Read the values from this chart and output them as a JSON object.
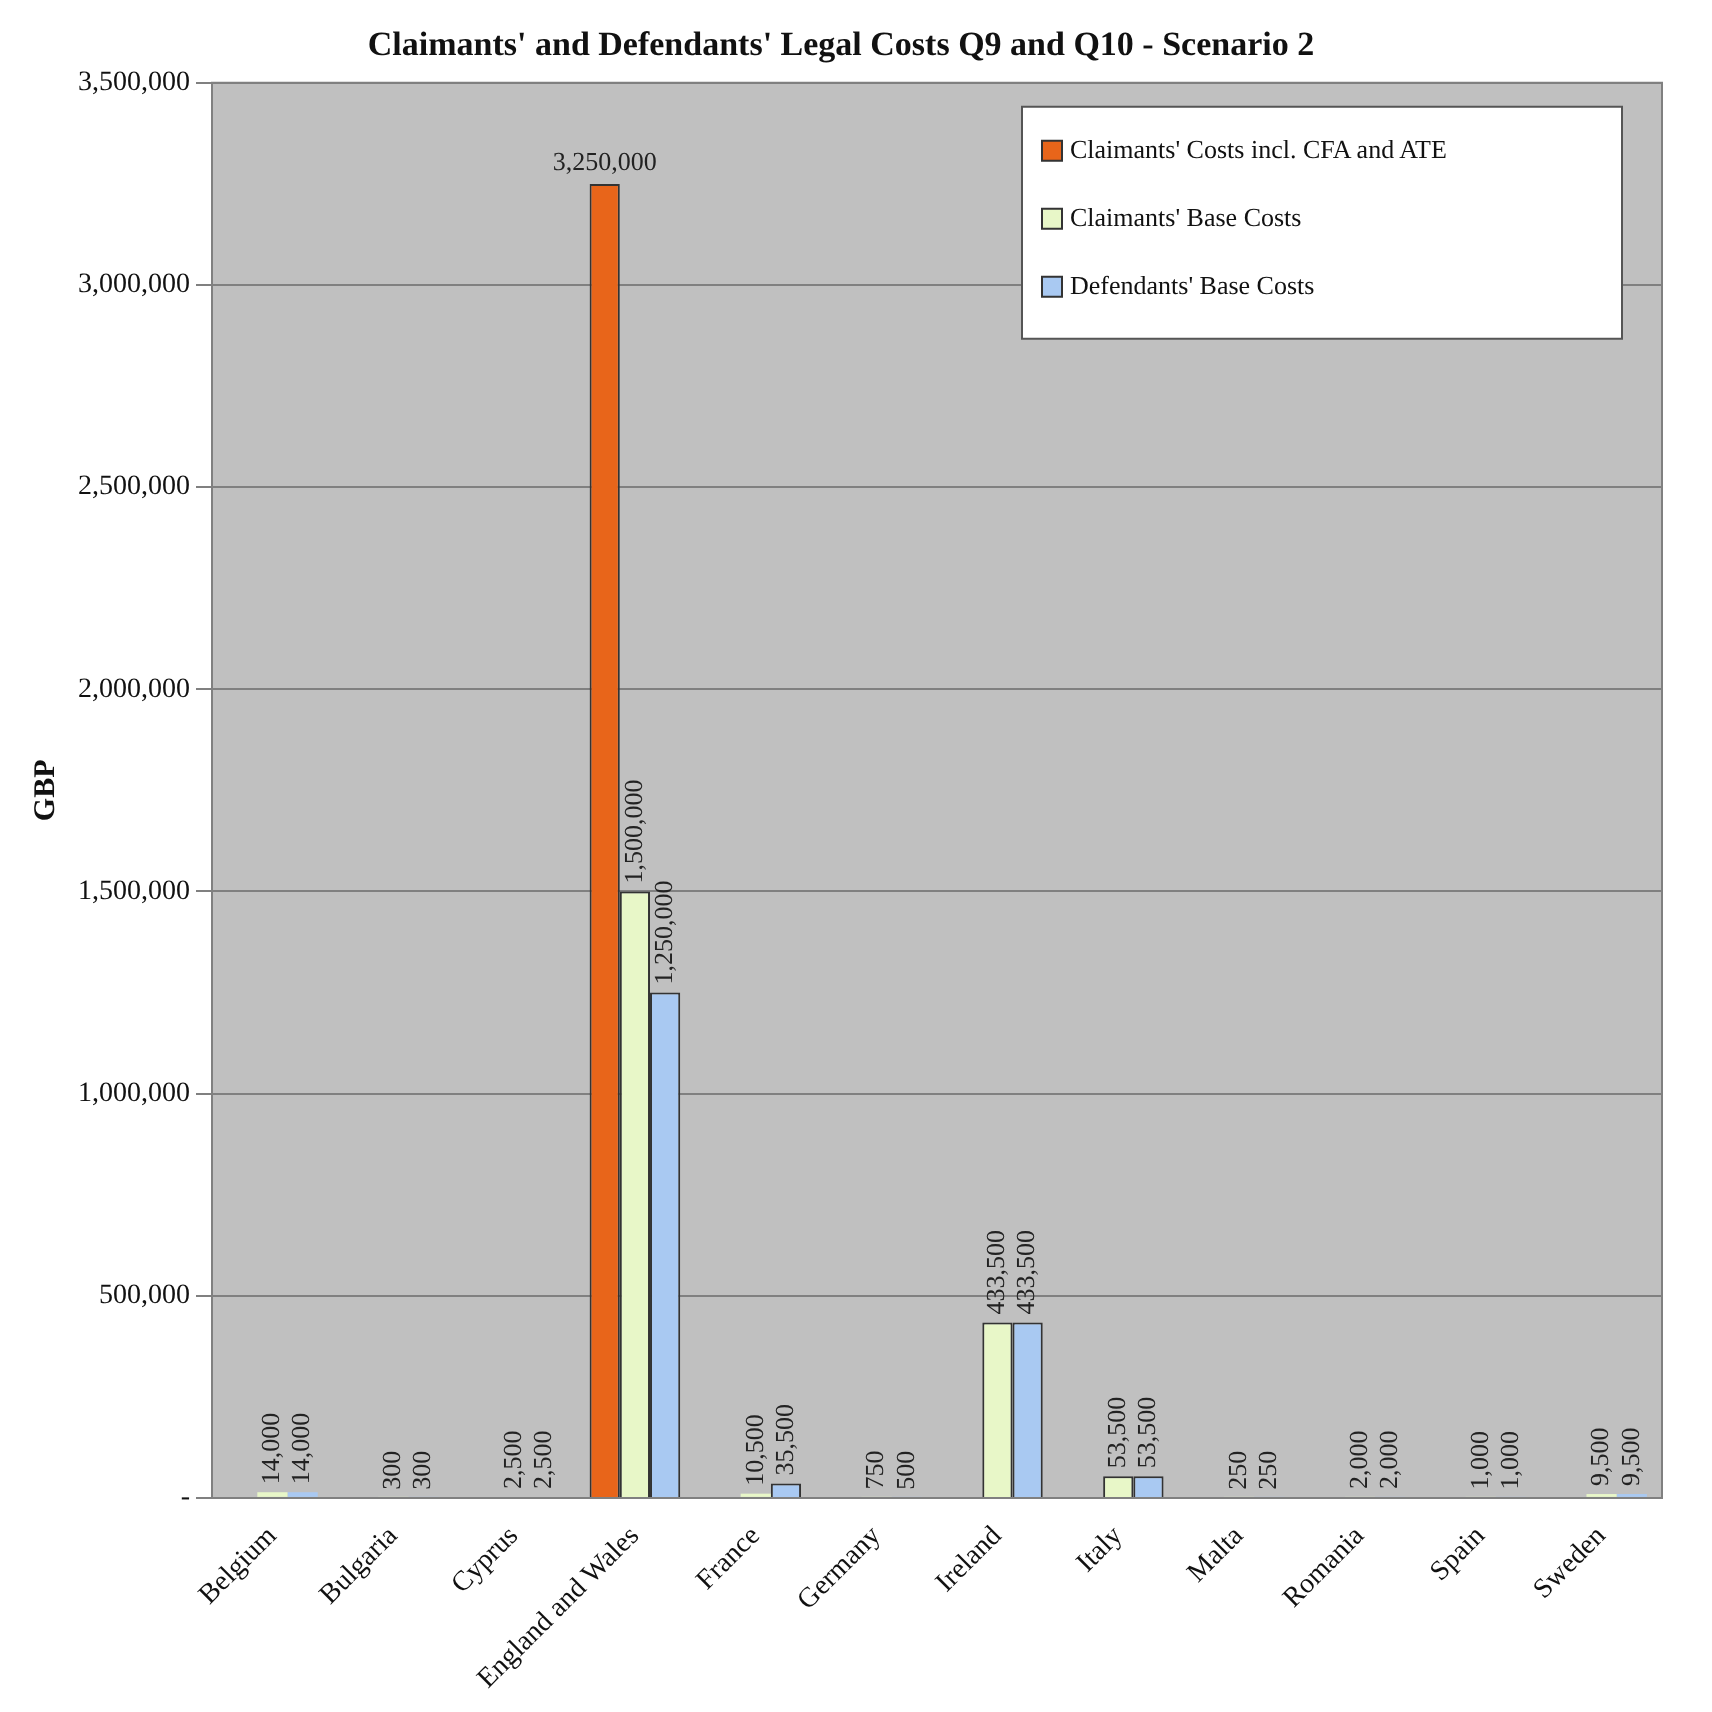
{
  "chart_data": {
    "type": "bar",
    "title": "Claimants' and Defendants' Legal Costs Q9 and Q10 - Scenario 2",
    "ylabel": "GBP",
    "categories": [
      "Belgium",
      "Bulgaria",
      "Cyprus",
      "England and Wales",
      "France",
      "Germany",
      "Ireland",
      "Italy",
      "Malta",
      "Romania",
      "Spain",
      "Sweden"
    ],
    "series": [
      {
        "name": "Claimants' Costs incl. CFA and ATE",
        "color": "#e8651a",
        "values": [
          null,
          null,
          null,
          3250000,
          null,
          null,
          null,
          null,
          null,
          null,
          null,
          null
        ],
        "value_labels": [
          null,
          null,
          null,
          "3,250,000",
          null,
          null,
          null,
          null,
          null,
          null,
          null,
          null
        ]
      },
      {
        "name": "Claimants' Base Costs",
        "color": "#e8f7c8",
        "values": [
          14000,
          300,
          2500,
          1500000,
          10500,
          750,
          433500,
          53500,
          250,
          2000,
          1000,
          9500
        ],
        "value_labels": [
          "14,000",
          "300",
          "2,500",
          "1,500,000",
          "10,500",
          "750",
          "433,500",
          "53,500",
          "250",
          "2,000",
          "1,000",
          "9,500"
        ]
      },
      {
        "name": "Defendants' Base Costs",
        "color": "#a9c9f2",
        "values": [
          14000,
          300,
          2500,
          1250000,
          35500,
          500,
          433500,
          53500,
          250,
          2000,
          1000,
          9500
        ],
        "value_labels": [
          "14,000",
          "300",
          "2,500",
          "1,250,000",
          "35,500",
          "500",
          "433,500",
          "53,500",
          "250",
          "2,000",
          "1,000",
          "9,500"
        ]
      }
    ],
    "ylim": [
      0,
      3500000
    ],
    "yticks": [
      {
        "value": 0,
        "label": "-"
      },
      {
        "value": 500000,
        "label": "500,000"
      },
      {
        "value": 1000000,
        "label": "1,000,000"
      },
      {
        "value": 1500000,
        "label": "1,500,000"
      },
      {
        "value": 2000000,
        "label": "2,000,000"
      },
      {
        "value": 2500000,
        "label": "2,500,000"
      },
      {
        "value": 3000000,
        "label": "3,000,000"
      },
      {
        "value": 3500000,
        "label": "3,500,000"
      }
    ],
    "grid": "y",
    "legend": "top right"
  }
}
